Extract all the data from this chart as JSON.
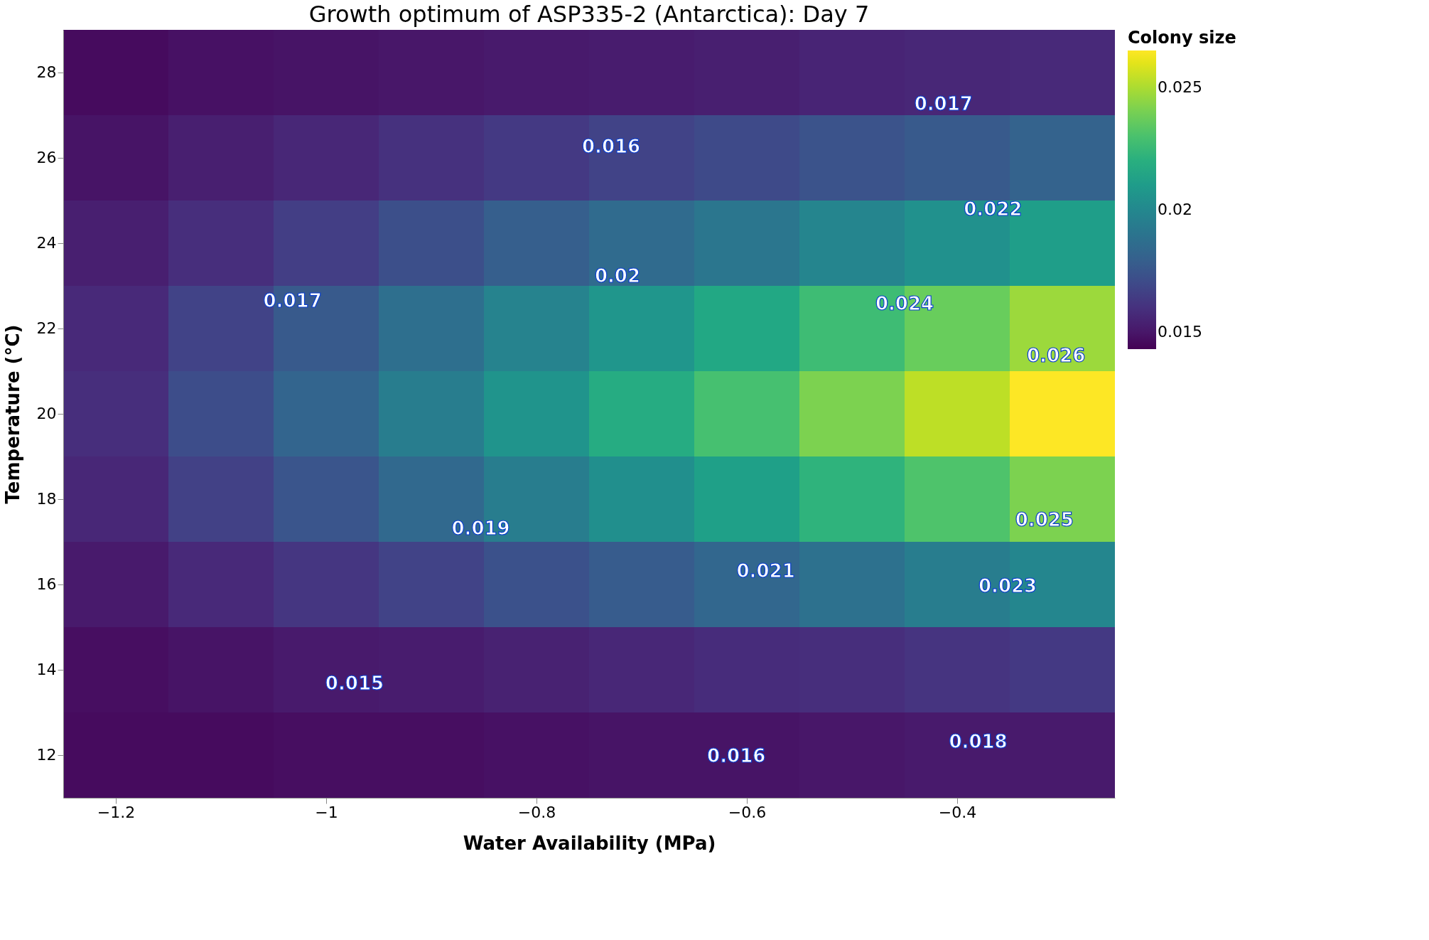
{
  "chart_data": {
    "type": "heatmap",
    "title": "Growth optimum of ASP335-2 (Antarctica): Day 7",
    "xlabel": "Water Availability  (MPa)",
    "ylabel": "Temperature (°C)",
    "clabel": "Colony size",
    "x": [
      -1.2,
      -1.1,
      -1.0,
      -0.9,
      -0.8,
      -0.7,
      -0.6,
      -0.5,
      -0.4,
      -0.3
    ],
    "y_categories": [
      "28",
      "26",
      "24",
      "22",
      "20",
      "18",
      "16",
      "14",
      "12"
    ],
    "cells": [
      [
        0.0146,
        0.0148,
        0.0149,
        0.015,
        0.0151,
        0.0152,
        0.0153,
        0.0155,
        0.0156,
        0.0157
      ],
      [
        0.0149,
        0.0153,
        0.0156,
        0.016,
        0.0163,
        0.0167,
        0.017,
        0.0174,
        0.0177,
        0.0181
      ],
      [
        0.0153,
        0.0159,
        0.0165,
        0.0172,
        0.0179,
        0.0185,
        0.0191,
        0.0198,
        0.0204,
        0.0211
      ],
      [
        0.0157,
        0.0167,
        0.0177,
        0.0187,
        0.0197,
        0.0207,
        0.0216,
        0.0227,
        0.0237,
        0.0247
      ],
      [
        0.0159,
        0.0171,
        0.0182,
        0.0194,
        0.0206,
        0.0218,
        0.0229,
        0.0241,
        0.0253,
        0.0265
      ],
      [
        0.0156,
        0.0166,
        0.0175,
        0.0184,
        0.0194,
        0.0203,
        0.0212,
        0.0222,
        0.0231,
        0.0241
      ],
      [
        0.0151,
        0.0157,
        0.0162,
        0.0167,
        0.0173,
        0.0178,
        0.0183,
        0.0188,
        0.0194,
        0.0199
      ],
      [
        0.0147,
        0.0149,
        0.0151,
        0.0152,
        0.0154,
        0.0156,
        0.0158,
        0.0159,
        0.0161,
        0.0163
      ],
      [
        0.0146,
        0.0146,
        0.0147,
        0.0147,
        0.0148,
        0.0149,
        0.0149,
        0.015,
        0.0151,
        0.0151
      ]
    ],
    "xlim": [
      -1.25,
      -0.25
    ],
    "xticks": [
      -1.2,
      -1,
      -0.8,
      -0.6,
      -0.4
    ],
    "clim": [
      0.0143,
      0.0265
    ],
    "cticks": [
      0.015,
      0.02,
      0.025
    ],
    "annotations": [
      "0.017",
      "0.016",
      "0.022",
      "0.017",
      "0.02",
      "0.024",
      "0.026",
      "0.019",
      "0.025",
      "0.021",
      "0.023",
      "0.015",
      "0.016",
      "0.018"
    ]
  }
}
